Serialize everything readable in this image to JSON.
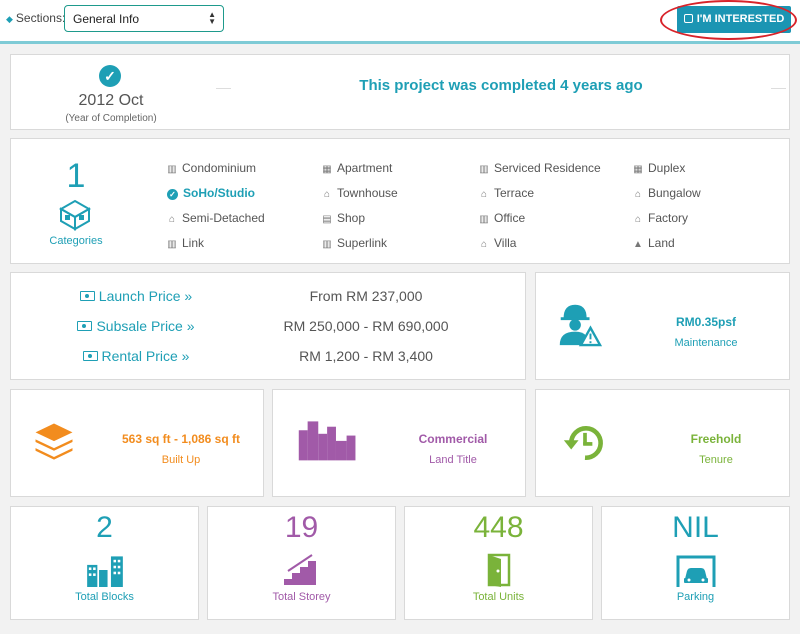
{
  "header": {
    "sections_label": "Sections:",
    "sections_value": "General Info",
    "interested_label": "I'M INTERESTED"
  },
  "completion": {
    "year": "2012 Oct",
    "year_caption": "(Year of Completion)",
    "message": "This project was completed 4 years ago"
  },
  "categories": {
    "count": "1",
    "label": "Categories",
    "items": [
      {
        "label": "Condominium",
        "icon": "building-icon"
      },
      {
        "label": "Apartment",
        "icon": "apartment-icon"
      },
      {
        "label": "Serviced Residence",
        "icon": "serviced-residence-icon"
      },
      {
        "label": "Duplex",
        "icon": "duplex-icon"
      },
      {
        "label": "SoHo/Studio",
        "icon": "check-circle-icon",
        "active": true
      },
      {
        "label": "Townhouse",
        "icon": "townhouse-icon"
      },
      {
        "label": "Terrace",
        "icon": "terrace-icon"
      },
      {
        "label": "Bungalow",
        "icon": "house-icon"
      },
      {
        "label": "Semi-Detached",
        "icon": "semi-detached-icon"
      },
      {
        "label": "Shop",
        "icon": "shop-icon"
      },
      {
        "label": "Office",
        "icon": "office-icon"
      },
      {
        "label": "Factory",
        "icon": "factory-icon"
      },
      {
        "label": "Link",
        "icon": "link-house-icon"
      },
      {
        "label": "Superlink",
        "icon": "superlink-icon"
      },
      {
        "label": "Villa",
        "icon": "villa-icon"
      },
      {
        "label": "Land",
        "icon": "land-icon"
      }
    ]
  },
  "prices": {
    "launch_label": "Launch Price »",
    "launch_value": "From RM 237,000",
    "subsale_label": "Subsale Price »",
    "subsale_value": "RM 250,000 - RM 690,000",
    "rental_label": "Rental Price »",
    "rental_value": "RM 1,200 - RM 3,400"
  },
  "maintenance": {
    "value": "RM0.35psf",
    "label": "Maintenance"
  },
  "built_up": {
    "value": "563 sq ft - 1,086 sq ft",
    "label": "Built Up"
  },
  "land_title": {
    "value": "Commercial",
    "label": "Land Title"
  },
  "tenure": {
    "value": "Freehold",
    "label": "Tenure"
  },
  "blocks": {
    "value": "2",
    "label": "Total Blocks"
  },
  "storey": {
    "value": "19",
    "label": "Total Storey"
  },
  "units": {
    "value": "448",
    "label": "Total Units"
  },
  "parking": {
    "value": "NIL",
    "label": "Parking"
  },
  "colors": {
    "teal": "#1e9fb5",
    "orange": "#f28c1e",
    "purple": "#a15aa8",
    "green": "#7ab33a",
    "button": "#1b95b3",
    "highlight_circle": "#d8232a"
  }
}
